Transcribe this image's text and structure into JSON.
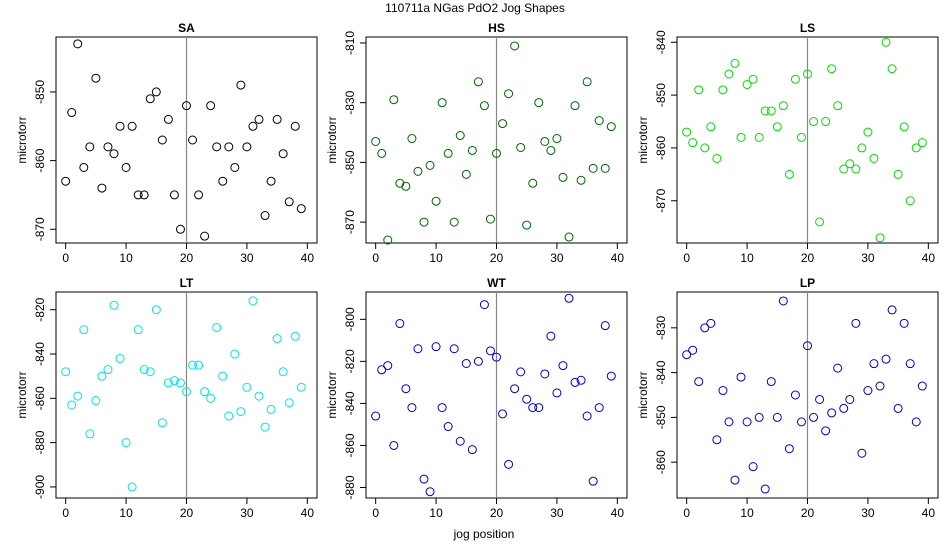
{
  "figure": {
    "title": "110711a   NGas PdO2 Jog Shapes",
    "xlabel": "jog position",
    "ylabel": "microtorr"
  },
  "chart_data": [
    {
      "type": "scatter",
      "title": "SA",
      "color": "#000000",
      "xlim": [
        0,
        40
      ],
      "ylim": [
        -872,
        -842
      ],
      "xticks": [
        0,
        10,
        20,
        30,
        40
      ],
      "yticks": [
        -850,
        -860,
        -870
      ],
      "vline": 20,
      "x": [
        0,
        1,
        2,
        3,
        4,
        5,
        6,
        7,
        8,
        9,
        10,
        11,
        12,
        13,
        14,
        15,
        16,
        17,
        18,
        19,
        20,
        21,
        22,
        23,
        24,
        25,
        26,
        27,
        28,
        29,
        30,
        31,
        32,
        33,
        34,
        35,
        36,
        37,
        38,
        39
      ],
      "y": [
        -863,
        -853,
        -843,
        -861,
        -858,
        -848,
        -864,
        -858,
        -859,
        -855,
        -861,
        -855,
        -865,
        -865,
        -851,
        -850,
        -857,
        -854,
        -865,
        -870,
        -852,
        -857,
        -865,
        -871,
        -852,
        -858,
        -863,
        -858,
        -861,
        -849,
        -858,
        -855,
        -854,
        -868,
        -863,
        -854,
        -859,
        -866,
        -855,
        -867
      ]
    },
    {
      "type": "scatter",
      "title": "HS",
      "color": "#006400",
      "xlim": [
        0,
        40
      ],
      "ylim": [
        -877,
        -808
      ],
      "xticks": [
        0,
        10,
        20,
        30,
        40
      ],
      "yticks": [
        -810,
        -830,
        -850,
        -870
      ],
      "vline": 20,
      "x": [
        0,
        1,
        2,
        3,
        4,
        5,
        6,
        7,
        8,
        9,
        10,
        11,
        12,
        13,
        14,
        15,
        16,
        17,
        18,
        19,
        20,
        21,
        22,
        23,
        24,
        25,
        26,
        27,
        28,
        29,
        30,
        31,
        32,
        33,
        34,
        35,
        36,
        37,
        38,
        39
      ],
      "y": [
        -843,
        -847,
        -876,
        -829,
        -857,
        -858,
        -842,
        -853,
        -870,
        -851,
        -863,
        -830,
        -847,
        -870,
        -841,
        -854,
        -846,
        -823,
        -831,
        -869,
        -847,
        -837,
        -827,
        -811,
        -845,
        -871,
        -857,
        -830,
        -843,
        -846,
        -842,
        -855,
        -875,
        -831,
        -856,
        -823,
        -852,
        -836,
        -852,
        -838
      ]
    },
    {
      "type": "scatter",
      "title": "LS",
      "color": "#00dd00",
      "xlim": [
        0,
        40
      ],
      "ylim": [
        -878,
        -839
      ],
      "xticks": [
        0,
        10,
        20,
        30,
        40
      ],
      "yticks": [
        -840,
        -850,
        -860,
        -870
      ],
      "vline": 20,
      "x": [
        0,
        1,
        2,
        3,
        4,
        5,
        6,
        7,
        8,
        9,
        10,
        11,
        12,
        13,
        14,
        15,
        16,
        17,
        18,
        19,
        20,
        21,
        22,
        23,
        24,
        25,
        26,
        27,
        28,
        29,
        30,
        31,
        32,
        33,
        34,
        35,
        36,
        37,
        38,
        39
      ],
      "y": [
        -857,
        -859,
        -849,
        -860,
        -856,
        -862,
        -849,
        -846,
        -844,
        -858,
        -848,
        -847,
        -858,
        -853,
        -853,
        -856,
        -852,
        -865,
        -847,
        -858,
        -846,
        -855,
        -874,
        -855,
        -845,
        -852,
        -864,
        -863,
        -864,
        -860,
        -857,
        -862,
        -877,
        -840,
        -845,
        -865,
        -856,
        -870,
        -860,
        -859
      ]
    },
    {
      "type": "scatter",
      "title": "LT",
      "color": "#00e5e5",
      "xlim": [
        0,
        40
      ],
      "ylim": [
        -905,
        -812
      ],
      "xticks": [
        0,
        10,
        20,
        30,
        40
      ],
      "yticks": [
        -820,
        -840,
        -860,
        -880,
        -900
      ],
      "vline": 20,
      "x": [
        0,
        1,
        2,
        3,
        4,
        5,
        6,
        7,
        8,
        9,
        10,
        11,
        12,
        13,
        14,
        15,
        16,
        17,
        18,
        19,
        20,
        21,
        22,
        23,
        24,
        25,
        26,
        27,
        28,
        29,
        30,
        31,
        32,
        33,
        34,
        35,
        36,
        37,
        38,
        39
      ],
      "y": [
        -848,
        -863,
        -859,
        -829,
        -876,
        -861,
        -850,
        -847,
        -818,
        -842,
        -880,
        -900,
        -829,
        -847,
        -848,
        -820,
        -871,
        -853,
        -852,
        -853,
        -857,
        -845,
        -845,
        -857,
        -860,
        -828,
        -850,
        -868,
        -840,
        -866,
        -855,
        -816,
        -859,
        -873,
        -865,
        -833,
        -848,
        -862,
        -832,
        -855
      ]
    },
    {
      "type": "scatter",
      "title": "WT",
      "color": "#0000cd",
      "xlim": [
        0,
        40
      ],
      "ylim": [
        -885,
        -787
      ],
      "xticks": [
        0,
        10,
        20,
        30,
        40
      ],
      "yticks": [
        -800,
        -820,
        -840,
        -860,
        -880
      ],
      "vline": 20,
      "x": [
        0,
        1,
        2,
        3,
        4,
        5,
        6,
        7,
        8,
        9,
        10,
        11,
        12,
        13,
        14,
        15,
        16,
        17,
        18,
        19,
        20,
        21,
        22,
        23,
        24,
        25,
        26,
        27,
        28,
        29,
        30,
        31,
        32,
        33,
        34,
        35,
        36,
        37,
        38,
        39
      ],
      "y": [
        -846,
        -824,
        -822,
        -860,
        -802,
        -833,
        -842,
        -814,
        -876,
        -882,
        -813,
        -842,
        -851,
        -814,
        -858,
        -821,
        -862,
        -820,
        -793,
        -815,
        -818,
        -845,
        -869,
        -833,
        -825,
        -838,
        -842,
        -842,
        -826,
        -808,
        -835,
        -822,
        -790,
        -830,
        -829,
        -846,
        -877,
        -842,
        -803,
        -827
      ]
    },
    {
      "type": "scatter",
      "title": "LP",
      "color": "#0000cd",
      "xlim": [
        0,
        40
      ],
      "ylim": [
        -868,
        -822
      ],
      "xticks": [
        0,
        10,
        20,
        30,
        40
      ],
      "yticks": [
        -830,
        -840,
        -850,
        -860
      ],
      "vline": 20,
      "x": [
        0,
        1,
        2,
        3,
        4,
        5,
        6,
        7,
        8,
        9,
        10,
        11,
        12,
        13,
        14,
        15,
        16,
        17,
        18,
        19,
        20,
        21,
        22,
        23,
        24,
        25,
        26,
        27,
        28,
        29,
        30,
        31,
        32,
        33,
        34,
        35,
        36,
        37,
        38,
        39
      ],
      "y": [
        -836,
        -835,
        -842,
        -830,
        -829,
        -855,
        -844,
        -851,
        -864,
        -841,
        -851,
        -861,
        -850,
        -866,
        -842,
        -850,
        -824,
        -857,
        -845,
        -851,
        -834,
        -850,
        -846,
        -853,
        -849,
        -839,
        -848,
        -846,
        -829,
        -858,
        -844,
        -838,
        -843,
        -837,
        -826,
        -848,
        -829,
        -838,
        -851,
        -843
      ]
    }
  ]
}
